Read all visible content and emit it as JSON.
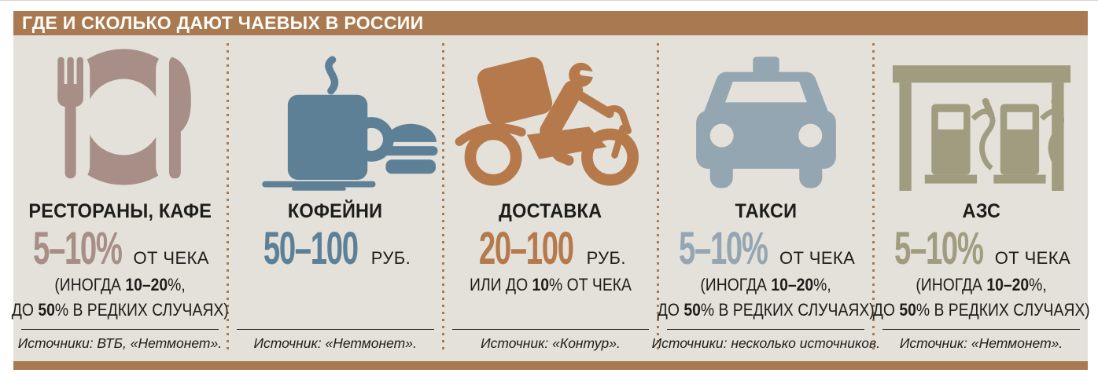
{
  "header": {
    "title": "ГДЕ И СКОЛЬКО ДАЮТ ЧАЕВЫХ В РОССИИ"
  },
  "colors": {
    "bar": "#a97a52",
    "board_bg": "#e3e1d9",
    "separator_dots": "#a97a52"
  },
  "columns": [
    {
      "id": "restaurants-cafes",
      "accent": "#a78e87",
      "title": "РЕСТОРАНЫ, КАФЕ",
      "value": "5–10%",
      "unit": "ОТ ЧЕКА",
      "note_line1": [
        {
          "t": "(ИНОГДА ",
          "b": false
        },
        {
          "t": "10–20",
          "b": true
        },
        {
          "t": "%,",
          "b": false
        }
      ],
      "note_line2": [
        {
          "t": "ДО ",
          "b": false
        },
        {
          "t": "50",
          "b": true
        },
        {
          "t": "% В РЕДКИХ СЛУЧАЯХ)",
          "b": false
        }
      ],
      "source": "Источники: ВТБ, «Нетмонет»."
    },
    {
      "id": "coffee-shops",
      "accent": "#5d8096",
      "title": "КОФЕЙНИ",
      "value": "50–100",
      "unit": "РУБ.",
      "source": "Источник: «Нетмонет»."
    },
    {
      "id": "delivery",
      "accent": "#b5794b",
      "title": "ДОСТАВКА",
      "value": "20–100",
      "unit": "РУБ.",
      "note_line1": [
        {
          "t": "ИЛИ ДО ",
          "b": false
        },
        {
          "t": "10",
          "b": true
        },
        {
          "t": "% ОТ ЧЕКА",
          "b": false
        }
      ],
      "source": "Источник: «Контур»."
    },
    {
      "id": "taxi",
      "accent": "#94a6b2",
      "title": "ТАКСИ",
      "value": "5–10%",
      "unit": "ОТ ЧЕКА",
      "note_line1": [
        {
          "t": "(ИНОГДА ",
          "b": false
        },
        {
          "t": "10–20",
          "b": true
        },
        {
          "t": "%,",
          "b": false
        }
      ],
      "note_line2": [
        {
          "t": "ДО ",
          "b": false
        },
        {
          "t": "50",
          "b": true
        },
        {
          "t": "% В РЕДКИХ СЛУЧАЯХ)",
          "b": false
        }
      ],
      "source": "Источники: несколько источников."
    },
    {
      "id": "gas-stations",
      "accent": "#a09c7f",
      "title": "АЗС",
      "value": "5–10%",
      "unit": "ОТ ЧЕКА",
      "note_line1": [
        {
          "t": "(ИНОГДА ",
          "b": false
        },
        {
          "t": "10–20",
          "b": true
        },
        {
          "t": "%,",
          "b": false
        }
      ],
      "note_line2": [
        {
          "t": "ДО ",
          "b": false
        },
        {
          "t": "50",
          "b": true
        },
        {
          "t": "% В РЕДКИХ СЛУЧАЯХ)",
          "b": false
        }
      ],
      "source": "Источник: «Нетмонет»."
    }
  ],
  "chart_data": {
    "type": "table",
    "title": "ГДЕ И СКОЛЬКО ДАЮТ ЧАЕВЫХ В РОССИИ",
    "categories": [
      "РЕСТОРАНЫ, КАФЕ",
      "КОФЕЙНИ",
      "ДОСТАВКА",
      "ТАКСИ",
      "АЗС"
    ],
    "values": [
      "5–10% от чека (иногда 10–20%, до 50% в редких случаях)",
      "50–100 руб.",
      "20–100 руб. или до 10% от чека",
      "5–10% от чека (иногда 10–20%, до 50% в редких случаях)",
      "5–10% от чека (иногда 10–20%, до 50% в редких случаях)"
    ],
    "sources": [
      "Источники: ВТБ, «Нетмонет».",
      "Источник: «Нетмонет».",
      "Источник: «Контур».",
      "Источники: несколько источников.",
      "Источник: «Нетмонет»."
    ]
  }
}
